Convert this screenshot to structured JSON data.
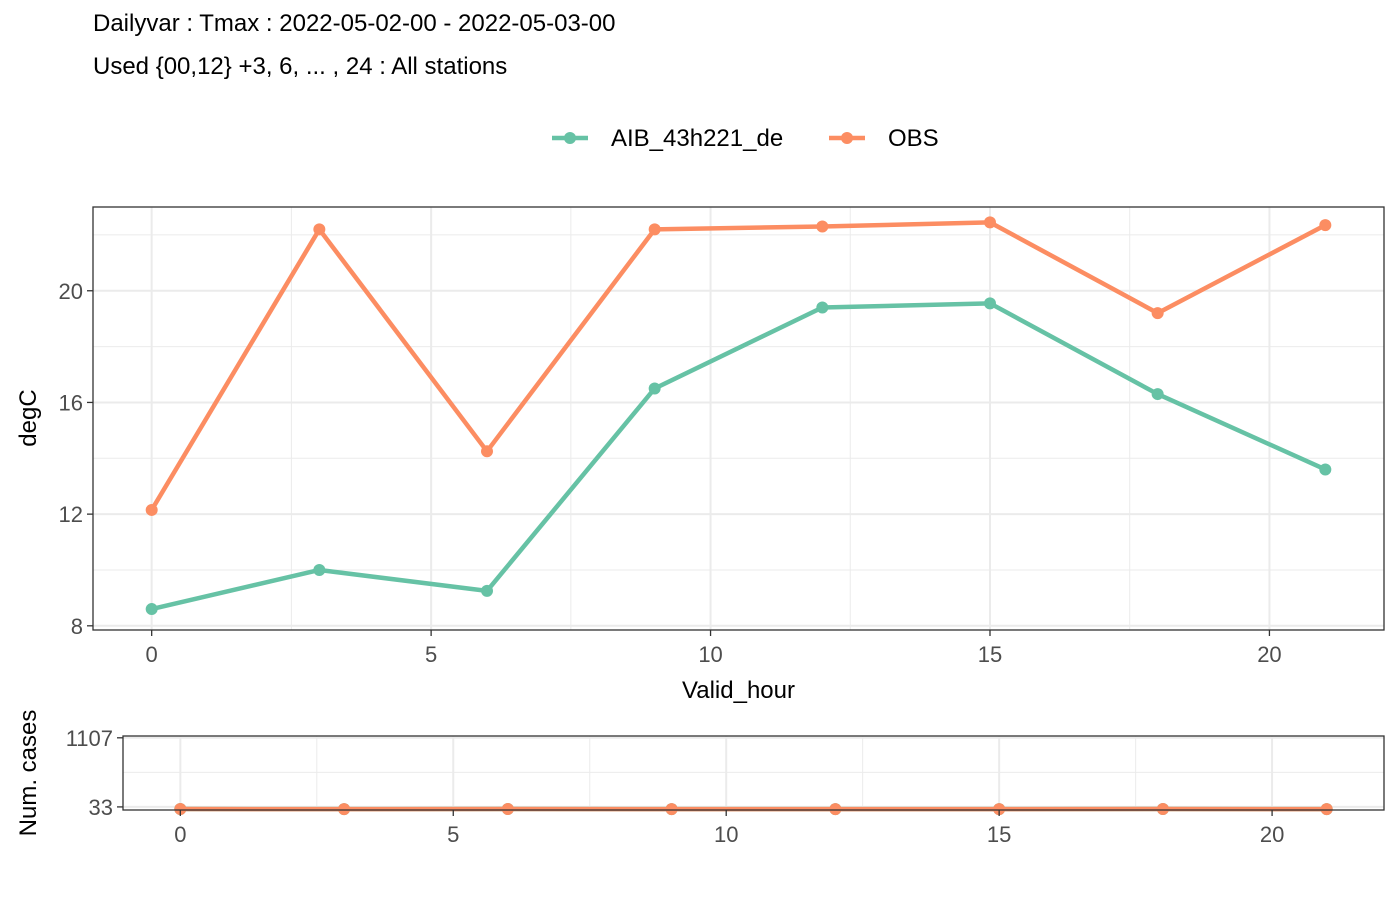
{
  "title": "Dailyvar : Tmax : 2022-05-02-00 - 2022-05-03-00",
  "subtitle": "Used {00,12} +3, 6, ... , 24 : All stations",
  "colors": {
    "AIB_43h221_de": "#66c2a5",
    "OBS": "#fc8d62"
  },
  "chart_data": [
    {
      "type": "line",
      "xlabel": "Valid_hour",
      "ylabel": "degC",
      "xlim": [
        -1.05,
        22.05
      ],
      "ylim": [
        7.85,
        23.0
      ],
      "x_ticks": [
        0,
        5,
        10,
        15,
        20
      ],
      "y_ticks": [
        8,
        12,
        16,
        20
      ],
      "grid": true,
      "legend_position": "top",
      "series": [
        {
          "name": "AIB_43h221_de",
          "x": [
            0,
            3,
            6,
            9,
            12,
            15,
            18,
            21
          ],
          "values": [
            8.6,
            10.0,
            9.25,
            16.5,
            19.4,
            19.55,
            16.3,
            13.6
          ]
        },
        {
          "name": "OBS",
          "x": [
            0,
            3,
            6,
            9,
            12,
            15,
            18,
            21
          ],
          "values": [
            12.15,
            22.2,
            14.25,
            22.2,
            22.3,
            22.45,
            19.2,
            22.35
          ]
        }
      ]
    },
    {
      "type": "line",
      "xlabel": "",
      "ylabel": "Num. cases",
      "xlim": [
        -1.05,
        22.05
      ],
      "ylim": [
        -15,
        1135
      ],
      "x_ticks": [
        0,
        5,
        10,
        15,
        20
      ],
      "y_ticks": [
        33,
        1107
      ],
      "y_tick_labels": [
        "33",
        "1107"
      ],
      "grid": true,
      "series": [
        {
          "name": "AIB_43h221_de",
          "x": [
            0,
            3,
            6,
            9,
            12,
            15,
            18,
            21
          ],
          "values": [
            0,
            -1,
            0,
            -1,
            -1,
            -1,
            0,
            -1
          ]
        },
        {
          "name": "OBS",
          "x": [
            0,
            3,
            6,
            9,
            12,
            15,
            18,
            21
          ],
          "values": [
            0,
            -1,
            0,
            -1,
            -1,
            -1,
            0,
            -1
          ]
        }
      ]
    }
  ]
}
